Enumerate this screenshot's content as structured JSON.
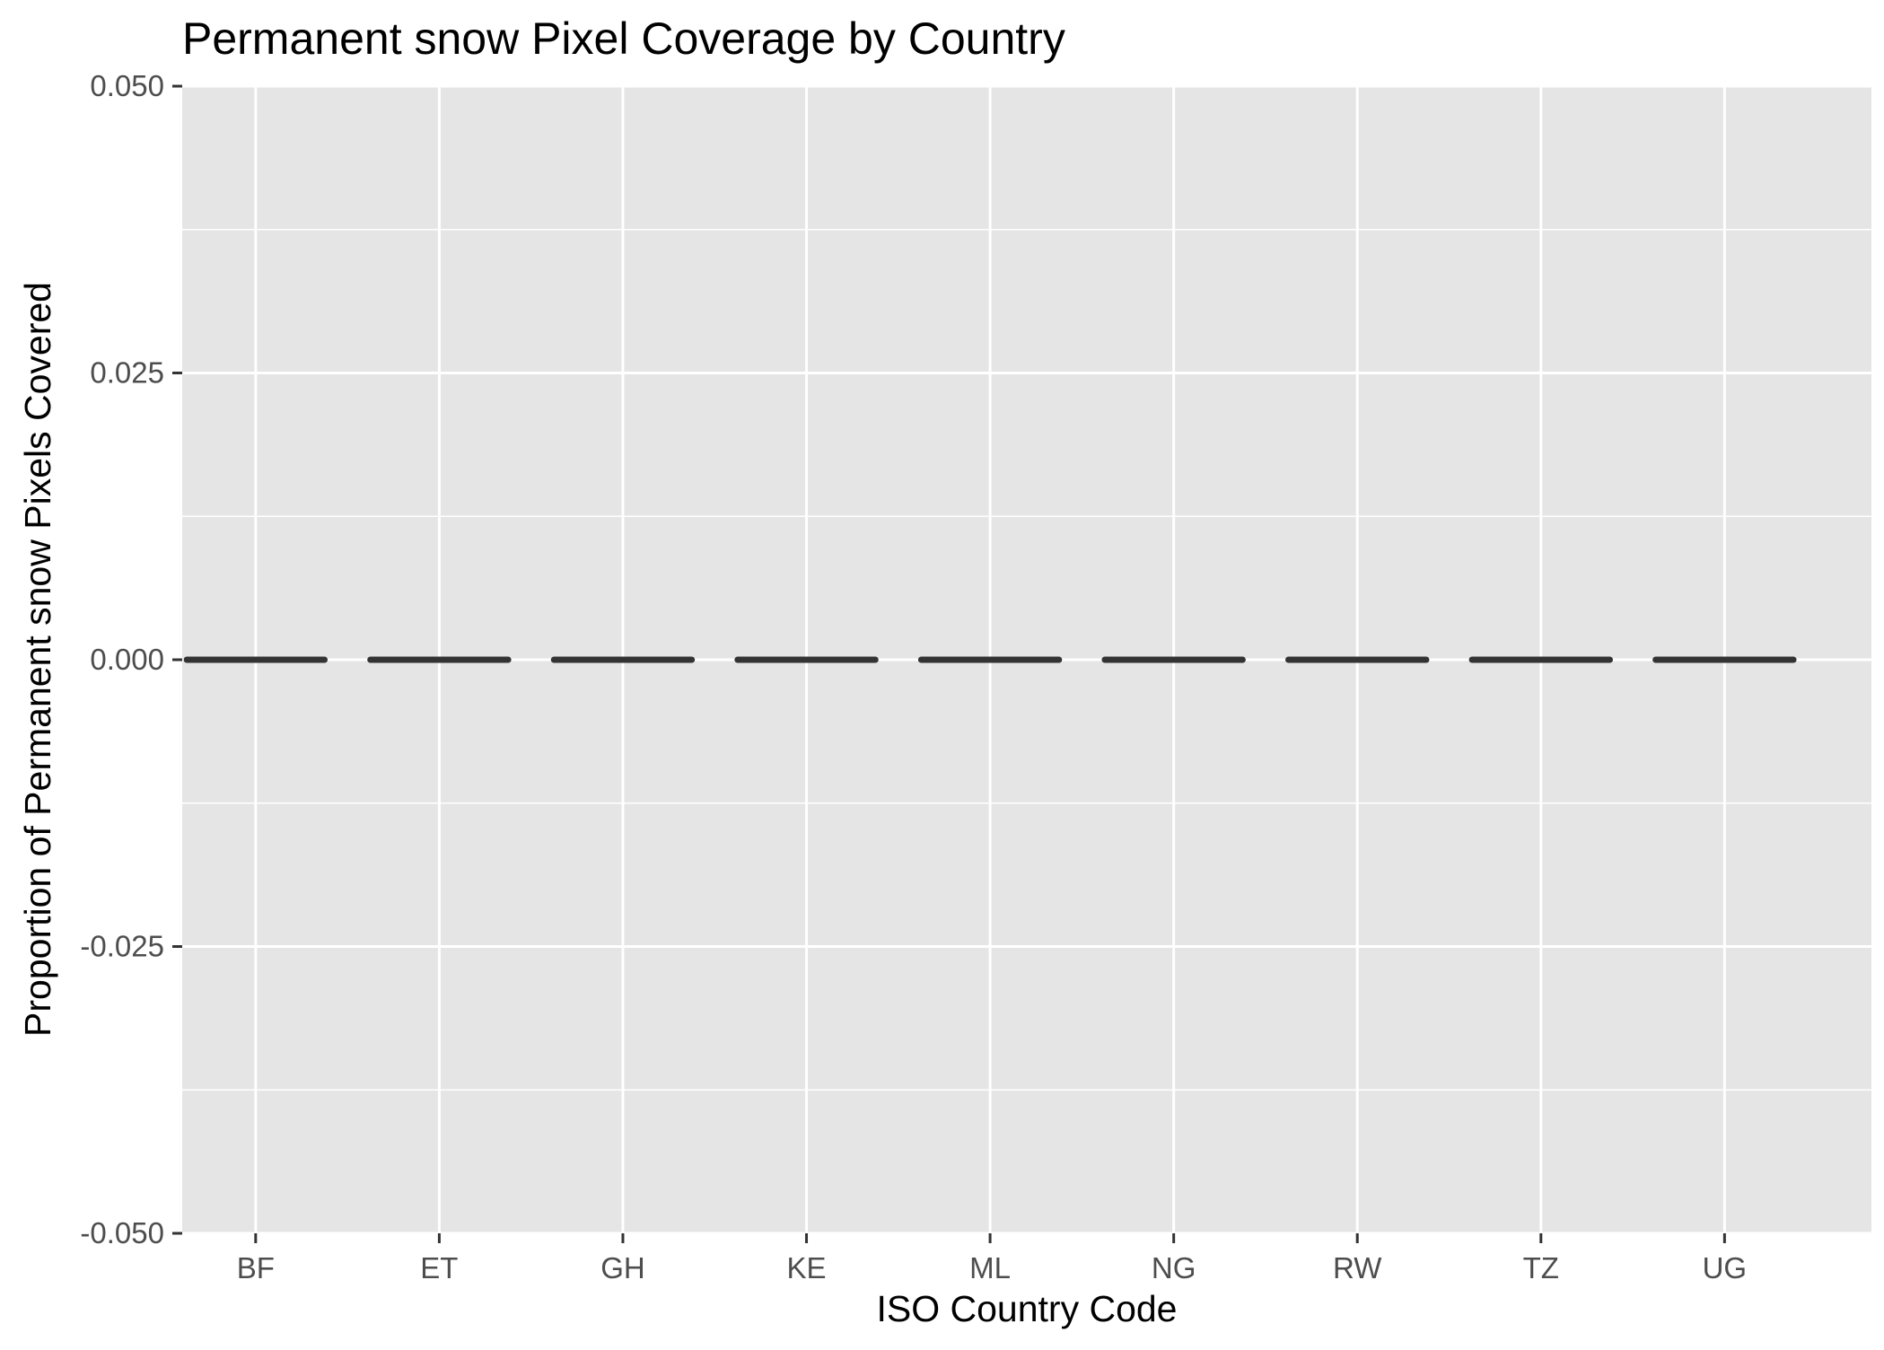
{
  "chart_data": {
    "type": "boxplot",
    "title": "Permanent snow Pixel Coverage by Country",
    "xlabel": "ISO Country Code",
    "ylabel": "Proportion of Permanent snow Pixels Covered",
    "categories": [
      "BF",
      "ET",
      "GH",
      "KE",
      "ML",
      "NG",
      "RW",
      "TZ",
      "UG"
    ],
    "values": [
      0,
      0,
      0,
      0,
      0,
      0,
      0,
      0,
      0
    ],
    "ylim": [
      -0.05,
      0.05
    ],
    "yticks": [
      -0.05,
      -0.025,
      0,
      0.025,
      0.05
    ],
    "ytick_labels": [
      "-0.050",
      "-0.025",
      "0.000",
      "0.025",
      "0.050"
    ],
    "grid": true,
    "legend": "none"
  },
  "colors": {
    "panel_background": "#e5e5e5",
    "grid": "#ffffff",
    "series": "#333333",
    "tick": "#333333",
    "tick_label": "#4d4d4d",
    "text": "#000000"
  }
}
